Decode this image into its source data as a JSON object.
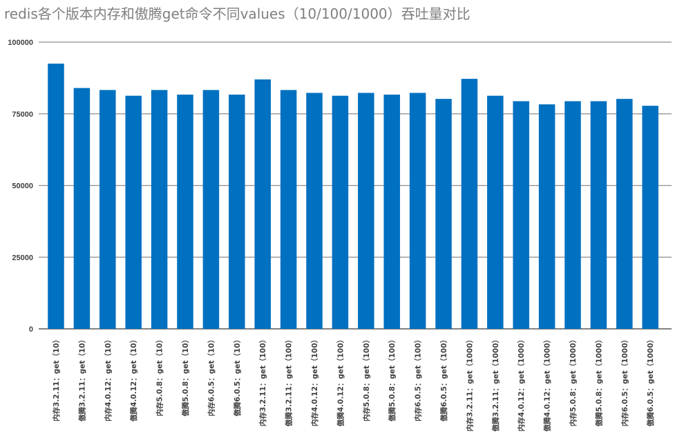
{
  "chart_data": {
    "type": "bar",
    "title": "redis各个版本内存和傲腾get命令不同values（10/100/1000）吞吐量对比",
    "xlabel": "",
    "ylabel": "",
    "ylim": [
      0,
      100000
    ],
    "yticks": [
      "0",
      "25000",
      "50000",
      "75000",
      "100000"
    ],
    "grid": true,
    "legend": "none",
    "bar_color": "#0070c0",
    "categories": [
      "内存3.2.11：get（10）",
      "傲腾3.2.11：get（10）",
      "内存4.0.12：get（10）",
      "傲腾4.0.12：get（10）",
      "内存5.0.8：get（10）",
      "傲腾5.0.8：get（10）",
      "内存6.0.5：get（10）",
      "傲腾6.0.5：get（10）",
      "内存3.2.11：get（100）",
      "傲腾3.2.11：get（100）",
      "内存4.0.12：get（100）",
      "傲腾4.0.12：get（100）",
      "内存5.0.8：get（100）",
      "傲腾5.0.8：get（100）",
      "内存6.0.5：get（100）",
      "傲腾6.0.5：get（100）",
      "内存3.2.11：get（1000）",
      "傲腾3.2.11：get（1000）",
      "内存4.0.12：get（1000）",
      "傲腾4.0.12：get（1000）",
      "内存5.0.8：get（1000）",
      "傲腾5.0.8：get（1000）",
      "内存6.0.5：get（1000）",
      "傲腾6.0.5：get（1000）"
    ],
    "values": [
      92500,
      84000,
      83300,
      81300,
      83300,
      81700,
      83300,
      81700,
      87000,
      83300,
      82300,
      81300,
      82300,
      81700,
      82300,
      80200,
      87200,
      81300,
      79400,
      78300,
      79400,
      79400,
      80200,
      77800
    ]
  }
}
